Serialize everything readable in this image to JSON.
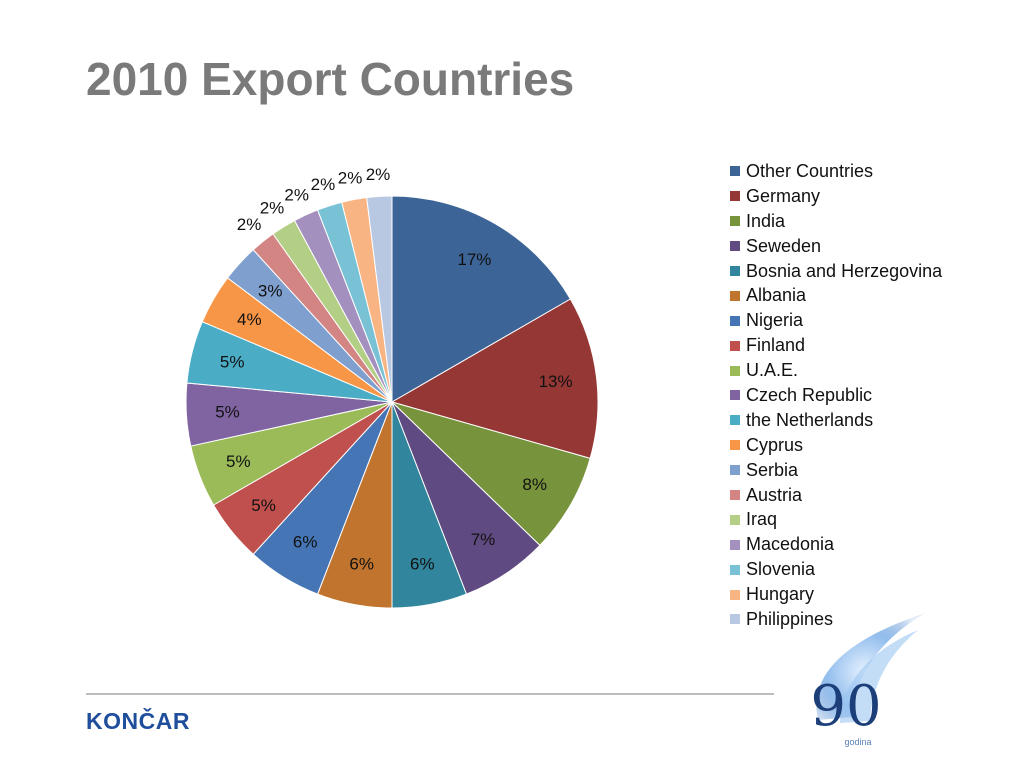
{
  "slide": {
    "title": "2010 Export Countries",
    "brand": "KONČAR"
  },
  "anniversary_logo": {
    "number": "90",
    "caption": "godina"
  },
  "chart_data": {
    "type": "pie",
    "title": "",
    "legend_position": "right",
    "start_angle": "12 o'clock, clockwise",
    "slices": [
      {
        "name": "Other Countries",
        "value": 17,
        "label": "17%",
        "color": "#3c6497"
      },
      {
        "name": "Germany",
        "value": 13,
        "label": "13%",
        "color": "#953735"
      },
      {
        "name": "India",
        "value": 8,
        "label": "8%",
        "color": "#77933c"
      },
      {
        "name": "Seweden",
        "value": 7,
        "label": "7%",
        "color": "#5f4b81"
      },
      {
        "name": "Bosnia and Herzegovina",
        "value": 6,
        "label": "6%",
        "color": "#31859c"
      },
      {
        "name": "Albania",
        "value": 6,
        "label": "6%",
        "color": "#c0742e"
      },
      {
        "name": "Nigeria",
        "value": 6,
        "label": "6%",
        "color": "#4575b4"
      },
      {
        "name": "Finland",
        "value": 5,
        "label": "5%",
        "color": "#c0504d"
      },
      {
        "name": "U.A.E.",
        "value": 5,
        "label": "5%",
        "color": "#9bbb59"
      },
      {
        "name": "Czech Republic",
        "value": 5,
        "label": "5%",
        "color": "#8064a2"
      },
      {
        "name": "the Netherlands",
        "value": 5,
        "label": "5%",
        "color": "#4bacc6"
      },
      {
        "name": "Cyprus",
        "value": 4,
        "label": "4%",
        "color": "#f79646"
      },
      {
        "name": "Serbia",
        "value": 3,
        "label": "3%",
        "color": "#7f9fce"
      },
      {
        "name": "Austria",
        "value": 2,
        "label": "2%",
        "color": "#d28583"
      },
      {
        "name": "Iraq",
        "value": 2,
        "label": "2%",
        "color": "#b3cf86"
      },
      {
        "name": "Macedonia",
        "value": 2,
        "label": "2%",
        "color": "#a390bf"
      },
      {
        "name": "Slovenia",
        "value": 2,
        "label": "2%",
        "color": "#79c2d6"
      },
      {
        "name": "Hungary",
        "value": 2,
        "label": "2%",
        "color": "#f9b483"
      },
      {
        "name": "Philippines",
        "value": 2,
        "label": "2%",
        "color": "#b9c8e2"
      }
    ]
  }
}
